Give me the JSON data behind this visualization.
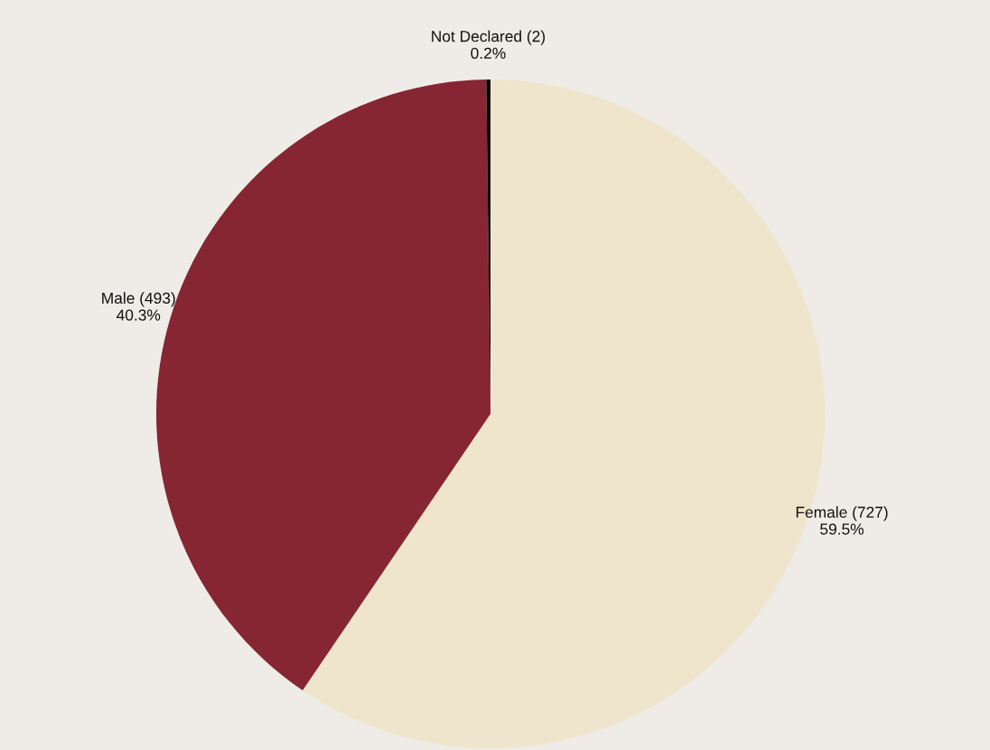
{
  "chart_data": {
    "type": "pie",
    "categories": [
      "Female (727)",
      "Male (493)",
      "Not Declared (2)"
    ],
    "values": [
      59.5,
      40.3,
      0.2
    ],
    "value_labels": [
      "59.5%",
      "40.3%",
      "0.2%"
    ],
    "colors": [
      "#efe5cc",
      "#862633",
      "#000000"
    ]
  }
}
